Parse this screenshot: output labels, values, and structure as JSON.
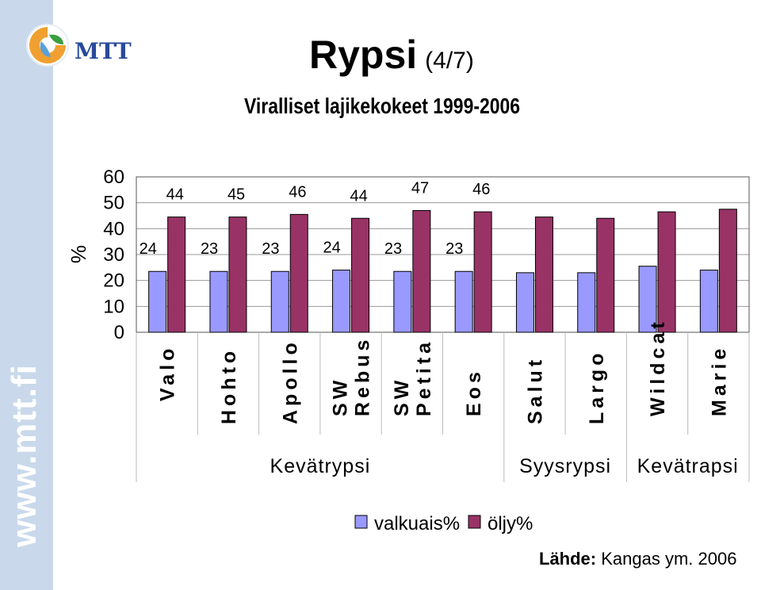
{
  "header": {
    "title": "Rypsi",
    "title_suffix": "(4/7)",
    "subtitle": "Viralliset lajikekokeet 1999-2006",
    "logo_text": "MTT",
    "sidebar_url": "www.mtt.fi"
  },
  "source": {
    "label": "Lähde:",
    "text": "Kangas ym. 2006"
  },
  "chart_data": {
    "type": "bar",
    "ylabel": "%",
    "ylim": [
      0,
      60
    ],
    "yticks": [
      0,
      10,
      20,
      30,
      40,
      50,
      60
    ],
    "grid": true,
    "legend_placement": "bottom",
    "categories": [
      "Valo",
      "Hohto",
      "Apollo",
      "SW Rebus",
      "SW Petita",
      "Eos",
      "Salut",
      "Largo",
      "Wildcat",
      "Marie"
    ],
    "category_lines": [
      [
        "Valo"
      ],
      [
        "Hohto"
      ],
      [
        "Apollo"
      ],
      [
        "SW",
        "Rebus"
      ],
      [
        "SW",
        "Petita"
      ],
      [
        "Eos"
      ],
      [
        "Salut"
      ],
      [
        "Largo"
      ],
      [
        "Wildcat"
      ],
      [
        "Marie"
      ]
    ],
    "groups": [
      {
        "label": "Kevätrypsi",
        "start": 0,
        "end": 5
      },
      {
        "label": "Syysrypsi",
        "start": 6,
        "end": 7
      },
      {
        "label": "Kevätrapsi",
        "start": 8,
        "end": 9
      }
    ],
    "series": [
      {
        "name": "valkuais%",
        "color": "#9999ff",
        "values": [
          23.5,
          23.5,
          23.5,
          24,
          23.5,
          23.5,
          23,
          23,
          25.5,
          24
        ],
        "labels": [
          "24",
          "23",
          "23",
          "24",
          "23",
          "23",
          "",
          "",
          "",
          ""
        ]
      },
      {
        "name": "öljy%",
        "color": "#993366",
        "values": [
          44.5,
          44.5,
          45.5,
          44,
          47,
          46.5,
          44.5,
          44,
          46.5,
          47.5
        ],
        "labels": [
          "44",
          "45",
          "46",
          "44",
          "47",
          "46",
          "",
          "",
          "",
          ""
        ]
      }
    ]
  }
}
